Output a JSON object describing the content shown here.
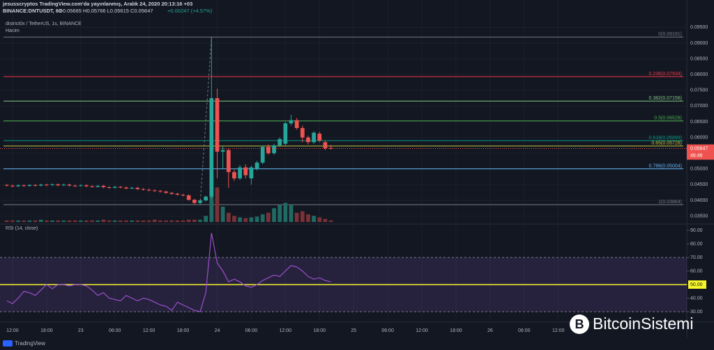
{
  "header": {
    "publisher": "jesusscryptos TradingView.com'da yayınlanmış, Aralık 24, 2020 20:13:16 +03",
    "symbol": "BINANCE:DNTUSDT, 60",
    "ohlc": "O0.05665 H0.05766 L0.05615 C0.05647",
    "change": "+0.00247 (+4.57%)"
  },
  "chart_data": [
    {
      "type": "candlestick",
      "title": "district0x / TetherUS, 1s, BINANCE",
      "volume_label": "Hacim",
      "open": [
        0.0449,
        0.0447,
        0.0445,
        0.0448,
        0.0446,
        0.0449,
        0.0447,
        0.045,
        0.0449,
        0.0451,
        0.0448,
        0.045,
        0.0447,
        0.0446,
        0.0448,
        0.0445,
        0.0443,
        0.0446,
        0.0442,
        0.044,
        0.0443,
        0.0441,
        0.0438,
        0.044,
        0.0436,
        0.0434,
        0.0432,
        0.043,
        0.0428,
        0.0424,
        0.0421,
        0.0418,
        0.0416,
        0.0402,
        0.0392,
        0.04,
        0.0412,
        0.0725,
        0.0555,
        0.056,
        0.049,
        0.047,
        0.0505,
        0.047,
        0.05,
        0.052,
        0.057,
        0.055,
        0.0575,
        0.058,
        0.0645,
        0.0655,
        0.063,
        0.06,
        0.0585,
        0.0612,
        0.0585,
        0.05665
      ],
      "high": [
        0.0452,
        0.045,
        0.0451,
        0.0451,
        0.0452,
        0.0452,
        0.0453,
        0.0453,
        0.0454,
        0.0454,
        0.0453,
        0.0453,
        0.045,
        0.0451,
        0.0451,
        0.0448,
        0.0449,
        0.0449,
        0.0445,
        0.0446,
        0.0446,
        0.0444,
        0.0443,
        0.0443,
        0.0439,
        0.0437,
        0.0435,
        0.0433,
        0.0431,
        0.0427,
        0.0424,
        0.0421,
        0.0419,
        0.0405,
        0.0403,
        0.0415,
        0.0919,
        0.0755,
        0.0572,
        0.0565,
        0.0498,
        0.0512,
        0.0515,
        0.051,
        0.0526,
        0.0575,
        0.0578,
        0.058,
        0.06,
        0.065,
        0.0672,
        0.0662,
        0.0638,
        0.0606,
        0.062,
        0.0618,
        0.059,
        0.05766
      ],
      "low": [
        0.0444,
        0.0442,
        0.0443,
        0.0443,
        0.0444,
        0.0444,
        0.0445,
        0.0446,
        0.0446,
        0.0445,
        0.0446,
        0.0444,
        0.0443,
        0.0444,
        0.0442,
        0.044,
        0.0441,
        0.0439,
        0.0437,
        0.0438,
        0.0438,
        0.0435,
        0.0436,
        0.0433,
        0.0431,
        0.0429,
        0.0427,
        0.0425,
        0.0421,
        0.0418,
        0.0415,
        0.0413,
        0.0399,
        0.0388,
        0.0389,
        0.0397,
        0.0405,
        0.047,
        0.05,
        0.044,
        0.0462,
        0.0465,
        0.047,
        0.045,
        0.0495,
        0.0515,
        0.0545,
        0.0545,
        0.057,
        0.0575,
        0.0638,
        0.0625,
        0.0585,
        0.0578,
        0.058,
        0.0585,
        0.056,
        0.05615
      ],
      "close": [
        0.0447,
        0.0445,
        0.0448,
        0.0446,
        0.0449,
        0.0447,
        0.045,
        0.0449,
        0.0451,
        0.0448,
        0.045,
        0.0447,
        0.0446,
        0.0448,
        0.0445,
        0.0443,
        0.0446,
        0.0442,
        0.044,
        0.0443,
        0.0441,
        0.0438,
        0.044,
        0.0436,
        0.0434,
        0.0432,
        0.043,
        0.0428,
        0.0424,
        0.0421,
        0.0418,
        0.0416,
        0.0402,
        0.0392,
        0.04,
        0.0412,
        0.0725,
        0.0555,
        0.056,
        0.049,
        0.047,
        0.0505,
        0.048,
        0.0505,
        0.052,
        0.057,
        0.055,
        0.0575,
        0.0595,
        0.0645,
        0.0655,
        0.063,
        0.06,
        0.0585,
        0.0615,
        0.059,
        0.0566,
        0.05647
      ],
      "volume": [
        2,
        2,
        2,
        2,
        2,
        2,
        3,
        2,
        2,
        2,
        2,
        2,
        2,
        2,
        2,
        2,
        2,
        3,
        2,
        2,
        2,
        2,
        2,
        2,
        2,
        2,
        3,
        2,
        2,
        2,
        2,
        2,
        3,
        3,
        3,
        8,
        60,
        45,
        20,
        12,
        8,
        6,
        5,
        6,
        7,
        10,
        12,
        18,
        22,
        25,
        22,
        12,
        14,
        10,
        8,
        6,
        4,
        2
      ],
      "up_color": "#26a69a",
      "down_color": "#ef5350",
      "ylim": [
        0.0327,
        0.1037
      ],
      "yticks": [
        {
          "value": 0.035,
          "label": "0.03500"
        },
        {
          "value": 0.04,
          "label": "0.04000"
        },
        {
          "value": 0.045,
          "label": "0.04500"
        },
        {
          "value": 0.05,
          "label": "0.05000"
        },
        {
          "value": 0.055,
          "label": "0.05500"
        },
        {
          "value": 0.06,
          "label": "0.06000"
        },
        {
          "value": 0.065,
          "label": "0.06500"
        },
        {
          "value": 0.07,
          "label": "0.07000"
        },
        {
          "value": 0.075,
          "label": "0.07500"
        },
        {
          "value": 0.08,
          "label": "0.08000"
        },
        {
          "value": 0.085,
          "label": "0.08500"
        },
        {
          "value": 0.09,
          "label": "0.09000"
        },
        {
          "value": 0.095,
          "label": "0.09500"
        }
      ],
      "xlim": [
        -1.2,
        119.6
      ],
      "xticks": [
        {
          "value": 1,
          "label": "12:00"
        },
        {
          "value": 7,
          "label": "18:00"
        },
        {
          "value": 13,
          "label": "23"
        },
        {
          "value": 19,
          "label": "06:00"
        },
        {
          "value": 25,
          "label": "12:00"
        },
        {
          "value": 31,
          "label": "18:00"
        },
        {
          "value": 37,
          "label": "24"
        },
        {
          "value": 43,
          "label": "06:00"
        },
        {
          "value": 49,
          "label": "12:00"
        },
        {
          "value": 55,
          "label": "18:00"
        },
        {
          "value": 61,
          "label": "25"
        },
        {
          "value": 67,
          "label": "06:00"
        },
        {
          "value": 73,
          "label": "12:00"
        },
        {
          "value": 79,
          "label": "18:00"
        },
        {
          "value": 85,
          "label": "26"
        },
        {
          "value": 91,
          "label": "06:00"
        },
        {
          "value": 97,
          "label": "12:00"
        }
      ],
      "last_price": {
        "value": 0.05647,
        "label": "0.05647"
      },
      "countdown": "46:46",
      "fib": [
        {
          "price": 0.09191,
          "label": "0(0.09191)",
          "color": "#787b86"
        },
        {
          "price": 0.07934,
          "label": "0.236(0.07934)",
          "color": "#f23645"
        },
        {
          "price": 0.07156,
          "label": "0.382(0.07156)",
          "color": "#81c784"
        },
        {
          "price": 0.06528,
          "label": "0.5(0.06528)",
          "color": "#4caf50"
        },
        {
          "price": 0.05899,
          "label": "0.618(0.05899)",
          "color": "#089981"
        },
        {
          "price": 0.05728,
          "label": "0.65(0.05728)",
          "color": "#c5c53a"
        },
        {
          "price": 0.05004,
          "label": "0.786(0.05004)",
          "color": "#64b5f6"
        },
        {
          "price": 0.03864,
          "label": "1(0.03864)",
          "color": "#787b86"
        }
      ]
    },
    {
      "type": "line",
      "title": "RSI (14, close)",
      "color": "#9c4fc7",
      "values": [
        38,
        36,
        40,
        45,
        44,
        42,
        46,
        50,
        47,
        50,
        50,
        49,
        50,
        50,
        49,
        46,
        42,
        44,
        40,
        39,
        38,
        42,
        40,
        38,
        40,
        39,
        37,
        35,
        34,
        31,
        37,
        35,
        33,
        31,
        30,
        44,
        88,
        66,
        60,
        52,
        54,
        52,
        49,
        48,
        50,
        53,
        55,
        57,
        56,
        60,
        64,
        63,
        60,
        56,
        54,
        55,
        53,
        52
      ],
      "ylim": [
        22.3,
        94.6
      ],
      "yticks": [
        {
          "value": 30,
          "label": "30.00"
        },
        {
          "value": 40,
          "label": "40.00"
        },
        {
          "value": 50,
          "label": "50.00"
        },
        {
          "value": 60,
          "label": "60.00"
        },
        {
          "value": 70,
          "label": "70.00"
        },
        {
          "value": 80,
          "label": "80.00"
        },
        {
          "value": 90,
          "label": "90.00"
        }
      ],
      "band": [
        30,
        70
      ],
      "reference": {
        "value": 50,
        "label": "50.00",
        "color": "#f5f52a"
      }
    }
  ],
  "footer": {
    "logo": "TradingView",
    "watermark": "BitcoinSistemi"
  }
}
